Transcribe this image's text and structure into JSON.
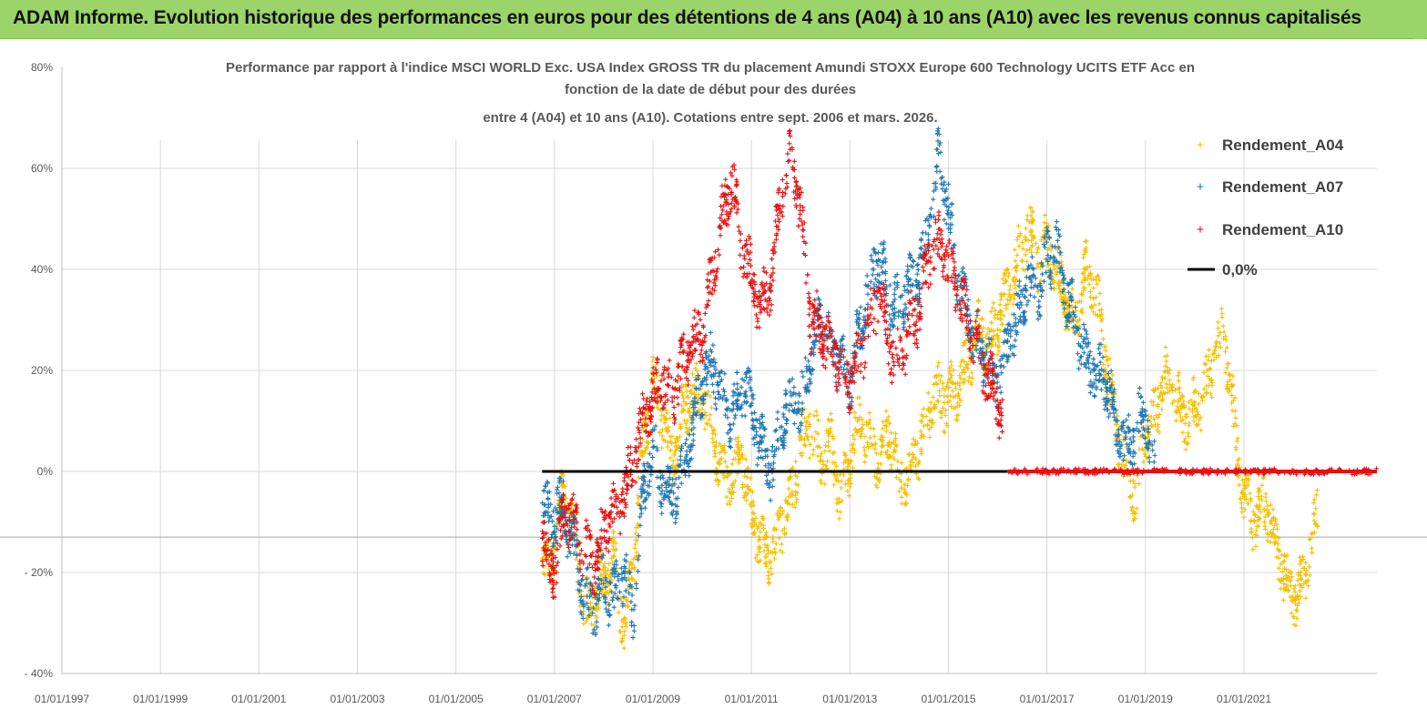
{
  "header": {
    "title": "ADAM Informe. Evolution historique des performances en euros pour des détentions de 4 ans (A04) à 10 ans (A10) avec les revenus connus capitalisés"
  },
  "colors": {
    "header_bg": "#9bd468",
    "A04": "#f5c000",
    "A07": "#1f77b4",
    "A10": "#e81010",
    "zero": "#000000"
  },
  "chart_data": {
    "type": "scatter",
    "title": [
      "Performance par rapport à l'indice MSCI WORLD Exc. USA Index GROSS TR  du placement Amundi STOXX Europe 600 Technology UCITS ETF Acc  en",
      "fonction de la date de début pour des durées",
      "entre 4 (A04) et 10 ans (A10). Cotations entre sept. 2006 et mars. 2026."
    ],
    "xlabel": "",
    "ylabel": "",
    "xlim": [
      1997.0,
      2023.7
    ],
    "ylim": [
      -40,
      80
    ],
    "x_ticks": [
      "01/01/1997",
      "01/01/1999",
      "01/01/2001",
      "01/01/2003",
      "01/01/2005",
      "01/01/2007",
      "01/01/2009",
      "01/01/2011",
      "01/01/2013",
      "01/01/2015",
      "01/01/2017",
      "01/01/2019",
      "01/01/2021"
    ],
    "y_ticks": [
      "80%",
      "60%",
      "40%",
      "20%",
      "0%",
      "- 20%",
      "- 40%"
    ],
    "grid": true,
    "legend_position": "top-right",
    "series": [
      {
        "name": "Rendement_A04",
        "color": "#f5c000",
        "marker": "+",
        "points": [
          [
            2006.75,
            -15
          ],
          [
            2006.9,
            -20
          ],
          [
            2007.05,
            -8
          ],
          [
            2007.2,
            -5
          ],
          [
            2007.4,
            -12
          ],
          [
            2007.6,
            -28
          ],
          [
            2007.8,
            -25
          ],
          [
            2008.0,
            -22
          ],
          [
            2008.2,
            -18
          ],
          [
            2008.4,
            -30
          ],
          [
            2008.6,
            -20
          ],
          [
            2008.8,
            5
          ],
          [
            2009.0,
            18
          ],
          [
            2009.2,
            10
          ],
          [
            2009.4,
            2
          ],
          [
            2009.6,
            12
          ],
          [
            2009.8,
            15
          ],
          [
            2010.0,
            14
          ],
          [
            2010.2,
            8
          ],
          [
            2010.4,
            0
          ],
          [
            2010.6,
            -2
          ],
          [
            2010.8,
            3
          ],
          [
            2011.0,
            -8
          ],
          [
            2011.2,
            -15
          ],
          [
            2011.4,
            -18
          ],
          [
            2011.6,
            -10
          ],
          [
            2011.8,
            -5
          ],
          [
            2012.0,
            5
          ],
          [
            2012.2,
            10
          ],
          [
            2012.4,
            2
          ],
          [
            2012.6,
            6
          ],
          [
            2012.8,
            -5
          ],
          [
            2013.0,
            2
          ],
          [
            2013.2,
            10
          ],
          [
            2013.4,
            5
          ],
          [
            2013.6,
            3
          ],
          [
            2013.8,
            8
          ],
          [
            2014.0,
            -2
          ],
          [
            2014.2,
            0
          ],
          [
            2014.4,
            5
          ],
          [
            2014.6,
            12
          ],
          [
            2014.8,
            15
          ],
          [
            2015.0,
            14
          ],
          [
            2015.2,
            17
          ],
          [
            2015.4,
            22
          ],
          [
            2015.6,
            28
          ],
          [
            2015.8,
            24
          ],
          [
            2016.0,
            30
          ],
          [
            2016.2,
            35
          ],
          [
            2016.4,
            42
          ],
          [
            2016.6,
            48
          ],
          [
            2016.8,
            42
          ],
          [
            2017.0,
            45
          ],
          [
            2017.2,
            40
          ],
          [
            2017.4,
            33
          ],
          [
            2017.6,
            30
          ],
          [
            2017.8,
            40
          ],
          [
            2018.0,
            35
          ],
          [
            2018.2,
            22
          ],
          [
            2018.4,
            10
          ],
          [
            2018.6,
            0
          ],
          [
            2018.8,
            -5
          ],
          [
            2019.0,
            8
          ],
          [
            2019.2,
            12
          ],
          [
            2019.4,
            18
          ],
          [
            2019.6,
            15
          ],
          [
            2019.8,
            10
          ],
          [
            2020.0,
            12
          ],
          [
            2020.2,
            16
          ],
          [
            2020.4,
            22
          ],
          [
            2020.6,
            28
          ],
          [
            2020.8,
            10
          ],
          [
            2021.0,
            -5
          ],
          [
            2021.2,
            -10
          ],
          [
            2021.4,
            -5
          ],
          [
            2021.6,
            -12
          ],
          [
            2021.8,
            -20
          ],
          [
            2022.0,
            -25
          ],
          [
            2022.2,
            -22
          ],
          [
            2022.4,
            -12
          ],
          [
            2022.5,
            -8
          ]
        ]
      },
      {
        "name": "Rendement_A07",
        "color": "#1f77b4",
        "marker": "+",
        "points": [
          [
            2006.75,
            -5
          ],
          [
            2006.9,
            -10
          ],
          [
            2007.05,
            -7
          ],
          [
            2007.2,
            -8
          ],
          [
            2007.4,
            -15
          ],
          [
            2007.6,
            -25
          ],
          [
            2007.8,
            -27
          ],
          [
            2008.0,
            -22
          ],
          [
            2008.2,
            -25
          ],
          [
            2008.4,
            -20
          ],
          [
            2008.6,
            -28
          ],
          [
            2008.8,
            -5
          ],
          [
            2009.0,
            5
          ],
          [
            2009.2,
            -3
          ],
          [
            2009.4,
            -5
          ],
          [
            2009.6,
            0
          ],
          [
            2009.8,
            8
          ],
          [
            2010.0,
            18
          ],
          [
            2010.2,
            22
          ],
          [
            2010.4,
            15
          ],
          [
            2010.6,
            10
          ],
          [
            2010.8,
            18
          ],
          [
            2011.0,
            12
          ],
          [
            2011.2,
            5
          ],
          [
            2011.4,
            0
          ],
          [
            2011.6,
            10
          ],
          [
            2011.8,
            15
          ],
          [
            2012.0,
            12
          ],
          [
            2012.2,
            22
          ],
          [
            2012.4,
            30
          ],
          [
            2012.6,
            25
          ],
          [
            2012.8,
            22
          ],
          [
            2013.0,
            18
          ],
          [
            2013.2,
            28
          ],
          [
            2013.4,
            38
          ],
          [
            2013.6,
            42
          ],
          [
            2013.8,
            35
          ],
          [
            2014.0,
            32
          ],
          [
            2014.2,
            38
          ],
          [
            2014.4,
            40
          ],
          [
            2014.6,
            48
          ],
          [
            2014.8,
            62
          ],
          [
            2015.0,
            52
          ],
          [
            2015.2,
            38
          ],
          [
            2015.4,
            30
          ],
          [
            2015.6,
            25
          ],
          [
            2015.8,
            22
          ],
          [
            2016.0,
            18
          ],
          [
            2016.2,
            25
          ],
          [
            2016.4,
            30
          ],
          [
            2016.6,
            38
          ],
          [
            2016.8,
            34
          ],
          [
            2017.0,
            42
          ],
          [
            2017.2,
            44
          ],
          [
            2017.4,
            35
          ],
          [
            2017.6,
            28
          ],
          [
            2017.8,
            22
          ],
          [
            2018.0,
            20
          ],
          [
            2018.2,
            18
          ],
          [
            2018.4,
            10
          ],
          [
            2018.6,
            5
          ],
          [
            2018.8,
            8
          ],
          [
            2019.0,
            12
          ],
          [
            2019.2,
            -2
          ]
        ]
      },
      {
        "name": "Rendement_A10",
        "color": "#e81010",
        "marker": "+",
        "points": [
          [
            2006.75,
            -12
          ],
          [
            2006.9,
            -20
          ],
          [
            2007.05,
            -18
          ],
          [
            2007.2,
            -8
          ],
          [
            2007.4,
            -10
          ],
          [
            2007.6,
            -15
          ],
          [
            2007.8,
            -18
          ],
          [
            2008.0,
            -12
          ],
          [
            2008.2,
            -8
          ],
          [
            2008.4,
            -5
          ],
          [
            2008.6,
            2
          ],
          [
            2008.8,
            10
          ],
          [
            2009.0,
            15
          ],
          [
            2009.2,
            18
          ],
          [
            2009.4,
            14
          ],
          [
            2009.6,
            22
          ],
          [
            2009.8,
            25
          ],
          [
            2010.0,
            28
          ],
          [
            2010.2,
            38
          ],
          [
            2010.4,
            50
          ],
          [
            2010.6,
            58
          ],
          [
            2010.8,
            45
          ],
          [
            2011.0,
            38
          ],
          [
            2011.2,
            32
          ],
          [
            2011.4,
            38
          ],
          [
            2011.6,
            55
          ],
          [
            2011.8,
            62
          ],
          [
            2012.0,
            52
          ],
          [
            2012.2,
            30
          ],
          [
            2012.4,
            28
          ],
          [
            2012.6,
            25
          ],
          [
            2012.8,
            22
          ],
          [
            2013.0,
            18
          ],
          [
            2013.2,
            22
          ],
          [
            2013.4,
            30
          ],
          [
            2013.6,
            35
          ],
          [
            2013.8,
            25
          ],
          [
            2014.0,
            22
          ],
          [
            2014.2,
            28
          ],
          [
            2014.4,
            32
          ],
          [
            2014.6,
            42
          ],
          [
            2014.8,
            45
          ],
          [
            2015.0,
            42
          ],
          [
            2015.2,
            35
          ],
          [
            2015.4,
            30
          ],
          [
            2015.6,
            25
          ],
          [
            2015.8,
            18
          ],
          [
            2016.0,
            15
          ],
          [
            2016.1,
            10
          ]
        ]
      },
      {
        "name": "0,0%",
        "color": "#000000",
        "marker": "line",
        "points": [
          [
            2006.75,
            0
          ],
          [
            2016.2,
            0
          ]
        ]
      }
    ],
    "red_zero_range": [
      2016.2,
      2023.7
    ]
  }
}
